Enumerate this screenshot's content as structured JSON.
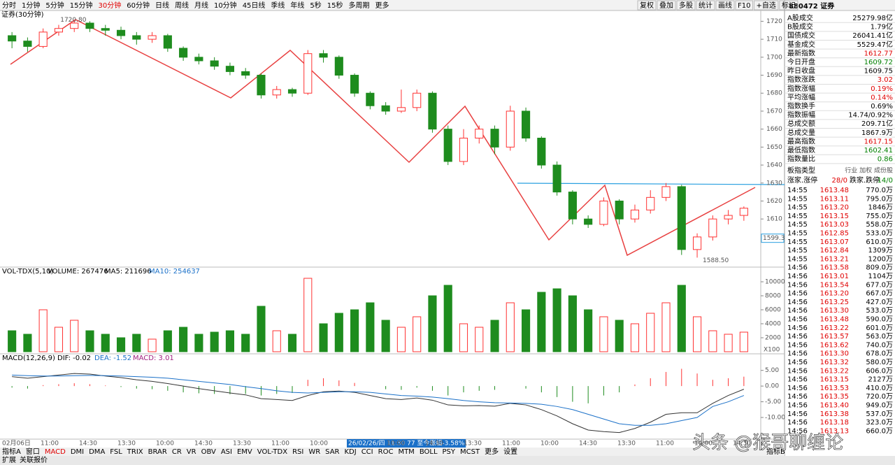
{
  "toolbar": {
    "periods": [
      "分时",
      "1分钟",
      "5分钟",
      "15分钟",
      "30分钟",
      "60分钟",
      "日线",
      "周线",
      "月线",
      "10分钟",
      "45日线",
      "季线",
      "年线",
      "5秒",
      "15秒",
      "多周期",
      "更多"
    ],
    "active": "30分钟",
    "buttons": [
      "复权",
      "叠加",
      "多股",
      "统计",
      "画线",
      "F10",
      "+自选",
      "标记"
    ]
  },
  "price_chart": {
    "label": "证券(30分钟)",
    "ylim": [
      1584,
      1726
    ],
    "yticks": [
      1610,
      1620,
      1630,
      1640,
      1650,
      1660,
      1670,
      1680,
      1690,
      1700,
      1710,
      1720
    ],
    "current": 1599.3,
    "high_note": "1720.80",
    "high_value": 1720.8,
    "low_note": "1588.50",
    "low_value": 1588.5,
    "up_color": "#ff3232",
    "down_color": "#1e8c1e",
    "candles": [
      {
        "open": 1712,
        "high": 1714,
        "low": 1705,
        "close": 1709,
        "volume": 3000,
        "macd": -0.5,
        "dif": 3,
        "dea": 3.5
      },
      {
        "open": 1709,
        "high": 1711,
        "low": 1703,
        "close": 1706,
        "volume": 2500,
        "macd": -0.8,
        "dif": 2.5,
        "dea": 3.3
      },
      {
        "open": 1706,
        "high": 1716,
        "low": 1705,
        "close": 1714,
        "volume": 6000,
        "macd": 0.3,
        "dif": 3,
        "dea": 3.2
      },
      {
        "open": 1714,
        "high": 1718,
        "low": 1712,
        "close": 1716,
        "volume": 3500,
        "macd": 0.6,
        "dif": 3.5,
        "dea": 3.2
      },
      {
        "open": 1716,
        "high": 1720.8,
        "low": 1714,
        "close": 1719,
        "volume": 4500,
        "macd": 0.9,
        "dif": 4,
        "dea": 3.3
      },
      {
        "open": 1719,
        "high": 1720,
        "low": 1714,
        "close": 1716,
        "volume": 3000,
        "macd": 0.6,
        "dif": 3.8,
        "dea": 3.4
      },
      {
        "open": 1716,
        "high": 1718,
        "low": 1712,
        "close": 1715,
        "volume": 2500,
        "macd": 0.2,
        "dif": 3.2,
        "dea": 3.3
      },
      {
        "open": 1715,
        "high": 1717,
        "low": 1710,
        "close": 1712,
        "volume": 2000,
        "macd": -0.3,
        "dif": 2.7,
        "dea": 3.2
      },
      {
        "open": 1712,
        "high": 1714,
        "low": 1707,
        "close": 1710,
        "volume": 2500,
        "macd": -0.8,
        "dif": 2,
        "dea": 3
      },
      {
        "open": 1710,
        "high": 1714,
        "low": 1708,
        "close": 1712,
        "volume": 1800,
        "macd": -1,
        "dif": 1.5,
        "dea": 2.8
      },
      {
        "open": 1712,
        "high": 1713,
        "low": 1703,
        "close": 1705,
        "volume": 3000,
        "macd": -1.5,
        "dif": 0.8,
        "dea": 2.5
      },
      {
        "open": 1705,
        "high": 1706,
        "low": 1698,
        "close": 1700,
        "volume": 3500,
        "macd": -2,
        "dif": 0,
        "dea": 2
      },
      {
        "open": 1700,
        "high": 1702,
        "low": 1696,
        "close": 1698,
        "volume": 2500,
        "macd": -2.3,
        "dif": -0.8,
        "dea": 1.5
      },
      {
        "open": 1698,
        "high": 1700,
        "low": 1693,
        "close": 1695,
        "volume": 2800,
        "macd": -2.5,
        "dif": -1.5,
        "dea": 1
      },
      {
        "open": 1695,
        "high": 1697,
        "low": 1690,
        "close": 1692,
        "volume": 3000,
        "macd": -2.6,
        "dif": -2.2,
        "dea": 0.5
      },
      {
        "open": 1692,
        "high": 1694,
        "low": 1688,
        "close": 1690,
        "volume": 2500,
        "macd": -2.5,
        "dif": -2.8,
        "dea": -0.2
      },
      {
        "open": 1690,
        "high": 1691,
        "low": 1677,
        "close": 1679,
        "volume": 6500,
        "macd": -3,
        "dif": -4,
        "dea": -0.8
      },
      {
        "open": 1679,
        "high": 1684,
        "low": 1677,
        "close": 1682,
        "volume": 3000,
        "macd": -2.5,
        "dif": -4.3,
        "dea": -1.5
      },
      {
        "open": 1682,
        "high": 1683,
        "low": 1678,
        "close": 1680,
        "volume": 2500,
        "macd": -2.2,
        "dif": -4.6,
        "dea": -2
      },
      {
        "open": 1680,
        "high": 1704,
        "low": 1679,
        "close": 1702,
        "volume": 10500,
        "macd": 2,
        "dif": -3,
        "dea": -2.2
      },
      {
        "open": 1702,
        "high": 1704,
        "low": 1697,
        "close": 1700,
        "volume": 4000,
        "macd": 2.5,
        "dif": -1.8,
        "dea": -2
      },
      {
        "open": 1700,
        "high": 1701,
        "low": 1688,
        "close": 1690,
        "volume": 5500,
        "macd": 1.8,
        "dif": -1.6,
        "dea": -1.8
      },
      {
        "open": 1690,
        "high": 1691,
        "low": 1678,
        "close": 1680,
        "volume": 6000,
        "macd": 1,
        "dif": -2,
        "dea": -1.8
      },
      {
        "open": 1680,
        "high": 1681,
        "low": 1671,
        "close": 1673,
        "volume": 7000,
        "macd": 0,
        "dif": -3,
        "dea": -2
      },
      {
        "open": 1673,
        "high": 1675,
        "low": 1668,
        "close": 1670,
        "volume": 4500,
        "macd": -1,
        "dif": -4,
        "dea": -2.5
      },
      {
        "open": 1670,
        "high": 1682,
        "low": 1669,
        "close": 1672,
        "volume": 3500,
        "macd": -1.2,
        "dif": -4.3,
        "dea": -3
      },
      {
        "open": 1672,
        "high": 1682,
        "low": 1670,
        "close": 1680,
        "volume": 5000,
        "macd": -0.5,
        "dif": -3.8,
        "dea": -3.2
      },
      {
        "open": 1680,
        "high": 1681,
        "low": 1658,
        "close": 1660,
        "volume": 8000,
        "macd": -1.5,
        "dif": -4.5,
        "dea": -3.5
      },
      {
        "open": 1660,
        "high": 1662,
        "low": 1640,
        "close": 1642,
        "volume": 9500,
        "macd": -3,
        "dif": -6,
        "dea": -4
      },
      {
        "open": 1642,
        "high": 1660,
        "low": 1640,
        "close": 1655,
        "volume": 4000,
        "macd": -2,
        "dif": -6.3,
        "dea": -4.6
      },
      {
        "open": 1655,
        "high": 1662,
        "low": 1652,
        "close": 1660,
        "volume": 3500,
        "macd": -1.5,
        "dif": -6.2,
        "dea": -5
      },
      {
        "open": 1660,
        "high": 1662,
        "low": 1646,
        "close": 1650,
        "volume": 4500,
        "macd": -1.2,
        "dif": -6.4,
        "dea": -5.3
      },
      {
        "open": 1650,
        "high": 1673,
        "low": 1648,
        "close": 1670,
        "volume": 7000,
        "macd": 0,
        "dif": -5.5,
        "dea": -5.4
      },
      {
        "open": 1670,
        "high": 1672,
        "low": 1653,
        "close": 1655,
        "volume": 6000,
        "macd": -0.8,
        "dif": -6,
        "dea": -5.5
      },
      {
        "open": 1655,
        "high": 1656,
        "low": 1638,
        "close": 1640,
        "volume": 8500,
        "macd": -2,
        "dif": -7.5,
        "dea": -5.8
      },
      {
        "open": 1640,
        "high": 1642,
        "low": 1623,
        "close": 1625,
        "volume": 9000,
        "macd": -3.5,
        "dif": -9.5,
        "dea": -6.5
      },
      {
        "open": 1625,
        "high": 1626,
        "low": 1607,
        "close": 1610,
        "volume": 8000,
        "macd": -5,
        "dif": -12,
        "dea": -7.5
      },
      {
        "open": 1610,
        "high": 1612,
        "low": 1605,
        "close": 1607,
        "volume": 6000,
        "macd": -5.5,
        "dif": -14,
        "dea": -9
      },
      {
        "open": 1607,
        "high": 1622,
        "low": 1606,
        "close": 1620,
        "volume": 5000,
        "macd": -3,
        "dif": -14.5,
        "dea": -10.5
      },
      {
        "open": 1620,
        "high": 1621,
        "low": 1607,
        "close": 1610,
        "volume": 4500,
        "macd": -2,
        "dif": -14.8,
        "dea": -12
      },
      {
        "open": 1610,
        "high": 1618,
        "low": 1608,
        "close": 1615,
        "volume": 4000,
        "macd": 0.5,
        "dif": -13.5,
        "dea": -12.5
      },
      {
        "open": 1615,
        "high": 1626,
        "low": 1613,
        "close": 1622,
        "volume": 5500,
        "macd": 2.5,
        "dif": -11.5,
        "dea": -12.5
      },
      {
        "open": 1622,
        "high": 1630,
        "low": 1620,
        "close": 1628,
        "volume": 7000,
        "macd": 4.5,
        "dif": -9,
        "dea": -12
      },
      {
        "open": 1628,
        "high": 1629,
        "low": 1590,
        "close": 1593,
        "volume": 9500,
        "macd": 5.5,
        "dif": -8.5,
        "dea": -11
      },
      {
        "open": 1593,
        "high": 1602,
        "low": 1588.5,
        "close": 1600,
        "volume": 5000,
        "macd": 4,
        "dif": -8.5,
        "dea": -10
      },
      {
        "open": 1600,
        "high": 1612,
        "low": 1598,
        "close": 1610,
        "volume": 3000,
        "macd": 2,
        "dif": -5.5,
        "dea": -6.5
      },
      {
        "open": 1610,
        "high": 1615,
        "low": 1607,
        "close": 1612,
        "volume": 2500,
        "macd": 2.5,
        "dif": -3,
        "dea": -5
      },
      {
        "open": 1612,
        "high": 1617,
        "low": 1609,
        "close": 1616,
        "volume": 2800,
        "macd": 3,
        "dif": -1,
        "dea": -3
      }
    ]
  },
  "volume_chart": {
    "title": "VOL-TDX(5,10)",
    "volume": "VOLUME: 267476",
    "ma5": "MA5: 211696",
    "ma10": "MA10: 254637",
    "unit": "X100",
    "ylim": [
      0,
      10800
    ],
    "yticks": [
      2000,
      4000,
      6000,
      8000,
      10000
    ]
  },
  "macd_chart": {
    "title": "MACD(12,26,9)",
    "dif": "DIF: -0.02",
    "dea": "DEA: -1.52",
    "macd": "MACD: 3.01",
    "ylim": [
      -16.9,
      7.6
    ],
    "yticks": [
      {
        "value": 5,
        "label": "5.00"
      },
      {
        "value": 0,
        "label": "0.00"
      },
      {
        "value": -5,
        "label": "-5.00"
      },
      {
        "value": -10,
        "label": "-10.00"
      }
    ]
  },
  "time_axis": [
    "02月06日",
    "11:00",
    "14:30",
    "13:30",
    "10:00",
    "14:30",
    "13:30",
    "11:00",
    "10:00",
    "26/02/26/四 11:30 77 至今涨幅-3.58%",
    "10:00",
    "14:30",
    "13:30",
    "11:00",
    "10:00",
    "14:30",
    "13:30",
    "11:00",
    "10:00",
    "14:30"
  ],
  "indicator_tabs": [
    "指标A",
    "窗口",
    "MACD",
    "DMI",
    "DMA",
    "FSL",
    "TRIX",
    "BRAR",
    "CR",
    "VR",
    "OBV",
    "ASI",
    "EMV",
    "VOL-TDX",
    "RSI",
    "WR",
    "SAR",
    "KDJ",
    "CCI",
    "ROC",
    "MTM",
    "BOLL",
    "PSY",
    "MCST",
    "更多",
    "设置"
  ],
  "indicator_b": "指标B",
  "footer": [
    "扩展",
    "关联报价"
  ],
  "watermark": "头条 @猴哥聊缠论",
  "panel": {
    "header": "880472 证券",
    "stats": [
      [
        "A股成交",
        "25279.98亿",
        "#000000"
      ],
      [
        "B股成交",
        "1.79亿",
        "#000000"
      ],
      [
        "国债成交",
        "26041.41亿",
        "#000000"
      ],
      [
        "基金成交",
        "5529.47亿",
        "#000000"
      ],
      [
        "最新指数",
        "1612.77",
        "#e00000"
      ],
      [
        "今日开盘",
        "1609.72",
        "#008000"
      ],
      [
        "昨日收盘",
        "1609.75",
        "#000000"
      ],
      [
        "指数涨跌",
        "3.02",
        "#e00000"
      ],
      [
        "指数涨幅",
        "0.19%",
        "#e00000"
      ],
      [
        "平均涨幅",
        "0.14%",
        "#e00000"
      ],
      [
        "指数换手",
        "0.69%",
        "#000000"
      ],
      [
        "指数振幅",
        "14.74/0.92%",
        "#000000"
      ],
      [
        "总成交额",
        "209.71亿",
        "#000000"
      ],
      [
        "总成交量",
        "1867.9万",
        "#000000"
      ],
      [
        "最高指数",
        "1617.15",
        "#e00000"
      ],
      [
        "最低指数",
        "1602.41",
        "#008000"
      ],
      [
        "指数量比",
        "0.86",
        "#008000"
      ]
    ],
    "board_type": "板指类型",
    "board_opts": "行业 加权 成份股",
    "up_label": "涨家.涨停",
    "up_value": "28/0",
    "down_label": "跌家.跌停",
    "down_value": "14/0",
    "trades": [
      [
        "14:55",
        "1613.48",
        "770.0万"
      ],
      [
        "14:55",
        "1613.11",
        "795.0万"
      ],
      [
        "14:55",
        "1613.20",
        "1846万"
      ],
      [
        "14:55",
        "1613.15",
        "755.0万"
      ],
      [
        "14:55",
        "1613.03",
        "558.0万"
      ],
      [
        "14:55",
        "1612.85",
        "533.0万"
      ],
      [
        "14:55",
        "1613.07",
        "610.0万"
      ],
      [
        "14:55",
        "1612.84",
        "1309万"
      ],
      [
        "14:55",
        "1613.21",
        "1200万"
      ],
      [
        "14:56",
        "1613.58",
        "809.0万"
      ],
      [
        "14:56",
        "1613.01",
        "1104万"
      ],
      [
        "14:56",
        "1613.54",
        "677.0万"
      ],
      [
        "14:56",
        "1613.20",
        "667.0万"
      ],
      [
        "14:56",
        "1613.25",
        "427.0万"
      ],
      [
        "14:56",
        "1613.30",
        "533.0万"
      ],
      [
        "14:56",
        "1613.48",
        "590.0万"
      ],
      [
        "14:56",
        "1613.22",
        "601.0万"
      ],
      [
        "14:56",
        "1613.57",
        "563.0万"
      ],
      [
        "14:56",
        "1613.62",
        "740.0万"
      ],
      [
        "14:56",
        "1613.30",
        "678.0万"
      ],
      [
        "14:56",
        "1613.32",
        "580.0万"
      ],
      [
        "14:56",
        "1613.22",
        "606.0万"
      ],
      [
        "14:56",
        "1613.15",
        "2127万"
      ],
      [
        "14:56",
        "1613.53",
        "410.0万"
      ],
      [
        "14:56",
        "1613.35",
        "720.0万"
      ],
      [
        "14:56",
        "1613.40",
        "949.0万"
      ],
      [
        "14:56",
        "1613.38",
        "537.0万"
      ],
      [
        "14:56",
        "1613.18",
        "323.0万"
      ],
      [
        "14:56",
        "1613.13",
        "660.0万"
      ]
    ]
  }
}
